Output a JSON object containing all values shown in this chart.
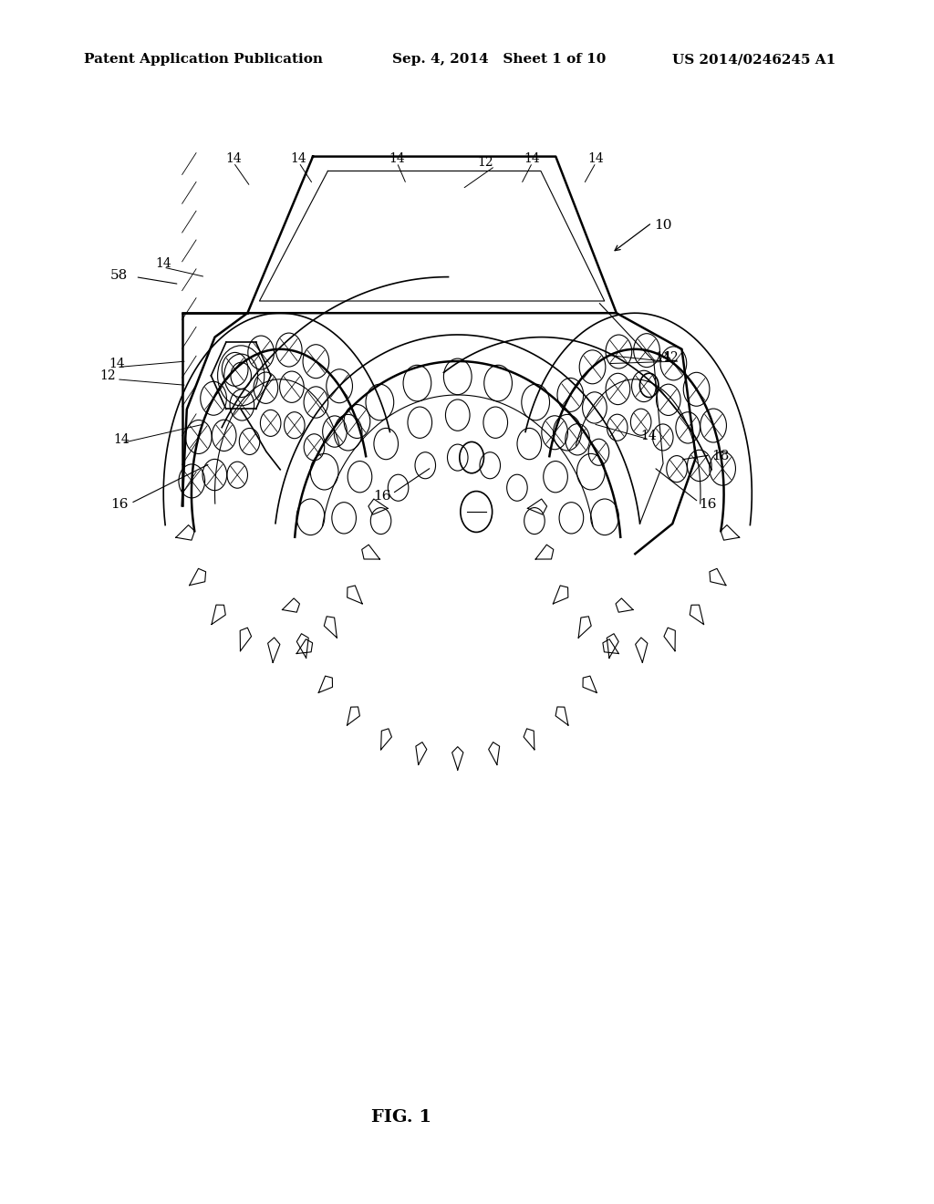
{
  "header_left": "Patent Application Publication",
  "header_center": "Sep. 4, 2014   Sheet 1 of 10",
  "header_right": "US 2014/0246245 A1",
  "figure_label": "FIG. 1",
  "background_color": "#ffffff",
  "line_color": "#000000",
  "text_color": "#000000",
  "header_fontsize": 11,
  "label_fontsize": 11,
  "fig_label_fontsize": 14
}
